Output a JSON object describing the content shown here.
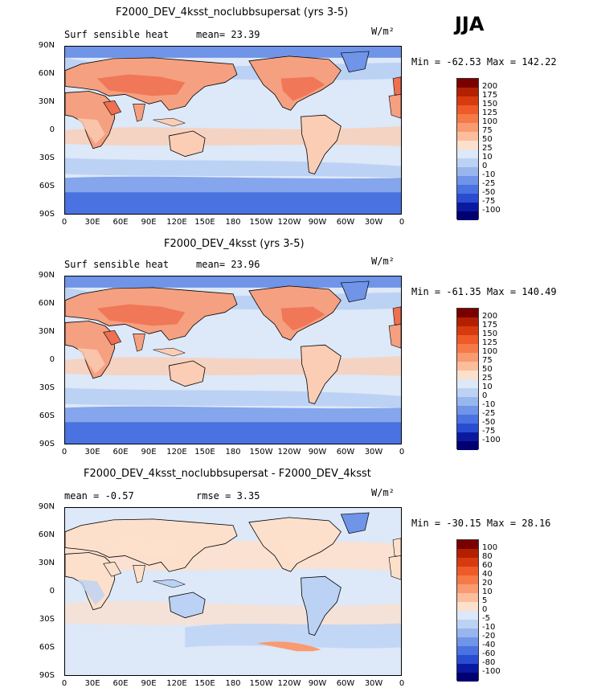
{
  "season": "JJA",
  "panels": [
    {
      "title": "F2000_DEV_4ksst_noclubbsupersat (yrs 3-5)",
      "left_label": "Surf sensible heat",
      "mid_label": "mean=  23.39",
      "units": "W/m²",
      "minmax": "Min = -62.53 Max = 142.22",
      "cb_labels": [
        "200",
        "175",
        "150",
        "125",
        "100",
        "75",
        "50",
        "25",
        "10",
        "0",
        "-10",
        "-25",
        "-50",
        "-75",
        "-100"
      ]
    },
    {
      "title": "F2000_DEV_4ksst (yrs 3-5)",
      "left_label": "Surf sensible heat",
      "mid_label": "mean=  23.96",
      "units": "W/m²",
      "minmax": "Min = -61.35 Max = 140.49",
      "cb_labels": [
        "200",
        "175",
        "150",
        "125",
        "100",
        "75",
        "50",
        "25",
        "10",
        "0",
        "-10",
        "-25",
        "-50",
        "-75",
        "-100"
      ]
    },
    {
      "title": "F2000_DEV_4ksst_noclubbsupersat - F2000_DEV_4ksst",
      "left_label": "mean =  -0.57",
      "mid_label": "rmse =   3.35",
      "units": "W/m²",
      "minmax": "Min = -30.15 Max =  28.16",
      "cb_labels": [
        "100",
        "80",
        "60",
        "40",
        "20",
        "10",
        "5",
        "0",
        "-5",
        "-10",
        "-20",
        "-40",
        "-60",
        "-80",
        "-100"
      ]
    }
  ],
  "lat_ticks": [
    "90N",
    "60N",
    "30N",
    "0",
    "30S",
    "60S",
    "90S"
  ],
  "lon_ticks": [
    "0",
    "30E",
    "60E",
    "90E",
    "120E",
    "150E",
    "180",
    "150W",
    "120W",
    "90W",
    "60W",
    "30W",
    "0"
  ],
  "colors": {
    "scale": [
      "#7a0000",
      "#b22000",
      "#d83a10",
      "#ee5a28",
      "#f57a48",
      "#f99a70",
      "#fbbd9c",
      "#fde0cc",
      "#dde8f8",
      "#bcd2f4",
      "#98b6ee",
      "#6f94e8",
      "#4a72e0",
      "#2a4cd0",
      "#0a1aa0",
      "#000070"
    ],
    "ocean_light": "#dde8f8",
    "ocean_mid": "#bcd2f4",
    "ocean_blue": "#6f94e8",
    "ice": "#4a72e0",
    "land_warm": "#f5a080",
    "land_hot": "#ee7050",
    "land_mild": "#fbcdb4",
    "diff_bg": "#dde8f8",
    "diff_pos": "#fde0cc",
    "diff_neg": "#bcd2f4"
  }
}
